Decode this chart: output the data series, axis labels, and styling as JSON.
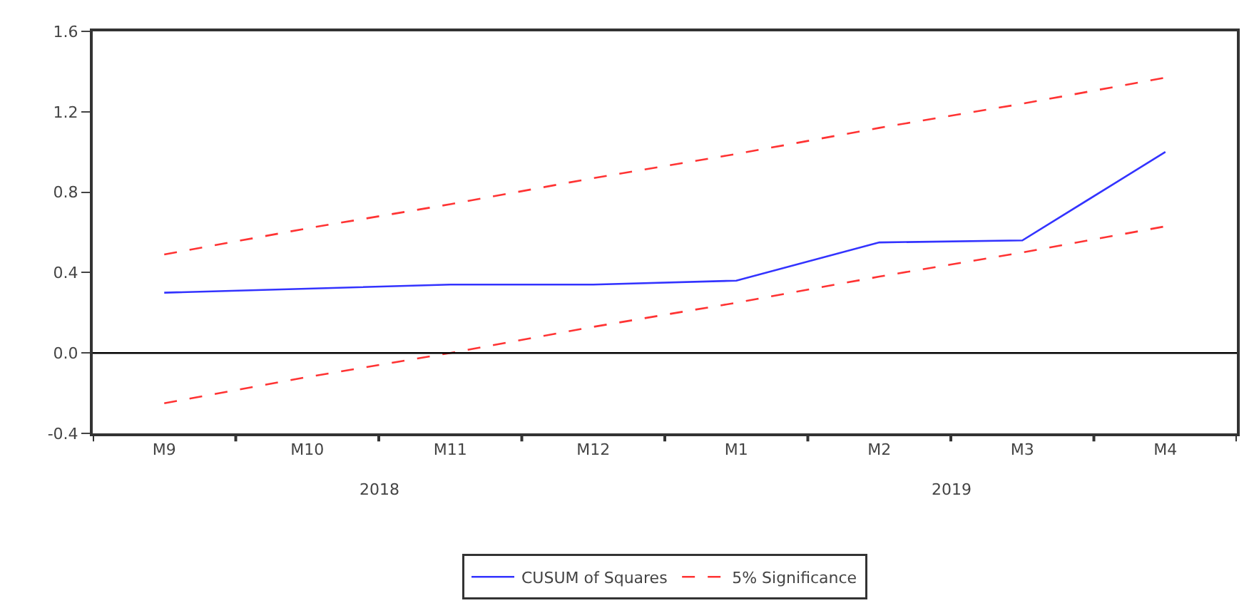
{
  "chart_data": {
    "type": "line",
    "categories": [
      "M9",
      "M10",
      "M11",
      "M12",
      "M1",
      "M2",
      "M3",
      "M4"
    ],
    "series": [
      {
        "name": "CUSUM of Squares",
        "color": "#3333ff",
        "line_style": "solid",
        "values": [
          0.3,
          0.32,
          0.34,
          0.34,
          0.36,
          0.55,
          0.56,
          1.0
        ]
      },
      {
        "name": "5% Significance",
        "color": "#ff3333",
        "line_style": "dashed",
        "values": [
          0.49,
          0.62,
          0.74,
          0.87,
          0.99,
          1.12,
          1.24,
          1.37
        ]
      },
      {
        "color": "#ff3333",
        "line_style": "dashed",
        "values": [
          -0.25,
          -0.12,
          0.0,
          0.13,
          0.25,
          0.38,
          0.5,
          0.63
        ]
      }
    ],
    "ylim": [
      -0.4,
      1.6
    ],
    "yticks": [
      {
        "value": -0.4,
        "label": "-0.4"
      },
      {
        "value": 0,
        "label": "0.0"
      },
      0.4,
      0.8,
      1.2,
      1.6
    ],
    "ref_lines": [
      {
        "axis": "y",
        "value": 0,
        "color": "#000000"
      }
    ],
    "annotations": [
      "2018",
      "2019"
    ],
    "legend": "bottom",
    "marker": "none"
  }
}
